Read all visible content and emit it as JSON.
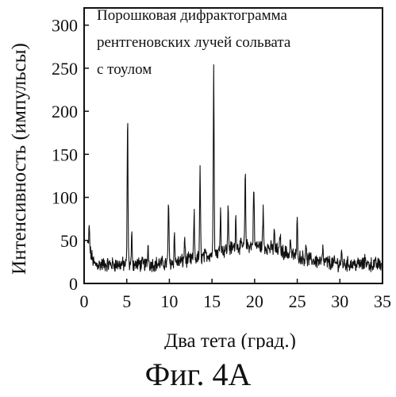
{
  "chart_data": {
    "type": "line",
    "title_lines": [
      "Порошковая дифрактограмма",
      "рентгеновских лучей сольвата",
      "с тоулом"
    ],
    "xlabel": "Два тета (град.)",
    "ylabel": "Интенсивность (импульсы)",
    "xlim": [
      0,
      35
    ],
    "ylim": [
      0,
      320
    ],
    "x_ticks": [
      "0",
      "5",
      "10",
      "15",
      "20",
      "25",
      "30",
      "35"
    ],
    "y_ticks": [
      "0",
      "50",
      "100",
      "150",
      "200",
      "250",
      "300"
    ],
    "grid": false,
    "series": [
      {
        "peaks": [
          {
            "x": 0.6,
            "y": 65
          },
          {
            "x": 5.1,
            "y": 192
          },
          {
            "x": 5.6,
            "y": 58
          },
          {
            "x": 7.5,
            "y": 45
          },
          {
            "x": 9.9,
            "y": 97
          },
          {
            "x": 10.6,
            "y": 58
          },
          {
            "x": 11.8,
            "y": 55
          },
          {
            "x": 12.9,
            "y": 82
          },
          {
            "x": 13.6,
            "y": 130
          },
          {
            "x": 15.2,
            "y": 258
          },
          {
            "x": 16.0,
            "y": 90
          },
          {
            "x": 16.9,
            "y": 88
          },
          {
            "x": 17.8,
            "y": 78
          },
          {
            "x": 18.9,
            "y": 125
          },
          {
            "x": 19.9,
            "y": 118
          },
          {
            "x": 21.0,
            "y": 85
          },
          {
            "x": 22.3,
            "y": 62
          },
          {
            "x": 23.0,
            "y": 58
          },
          {
            "x": 24.2,
            "y": 52
          },
          {
            "x": 25.0,
            "y": 73
          },
          {
            "x": 26.0,
            "y": 45
          },
          {
            "x": 28.0,
            "y": 38
          },
          {
            "x": 30.2,
            "y": 35
          },
          {
            "x": 33.0,
            "y": 32
          }
        ]
      }
    ]
  },
  "figure_caption": "Фиг. 4А"
}
